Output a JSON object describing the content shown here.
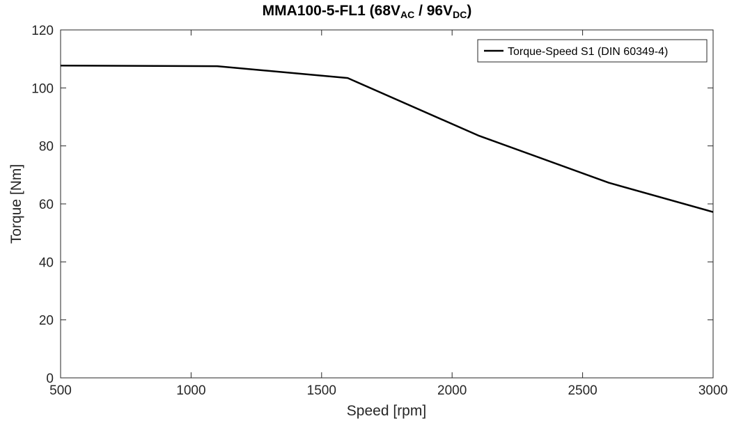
{
  "chart_data": {
    "type": "line",
    "title": {
      "prefix": "MMA100-5-FL1 (68V",
      "sub1": "AC",
      "middle": " / 96V",
      "sub2": "DC",
      "suffix": ")"
    },
    "xlabel": "Speed [rpm]",
    "ylabel": "Torque [Nm]",
    "xlim": [
      500,
      3000
    ],
    "ylim": [
      0,
      120
    ],
    "xticks": [
      500,
      1000,
      1500,
      2000,
      2500,
      3000
    ],
    "yticks": [
      0,
      20,
      40,
      60,
      80,
      100,
      120
    ],
    "grid": false,
    "legend_position": "top-right",
    "series": [
      {
        "name": "Torque-Speed S1 (DIN 60349-4)",
        "color": "#000000",
        "x": [
          500,
          1100,
          1600,
          2100,
          2600,
          3000
        ],
        "y": [
          107.7,
          107.5,
          103.4,
          83.6,
          67.3,
          57.2
        ]
      }
    ]
  }
}
